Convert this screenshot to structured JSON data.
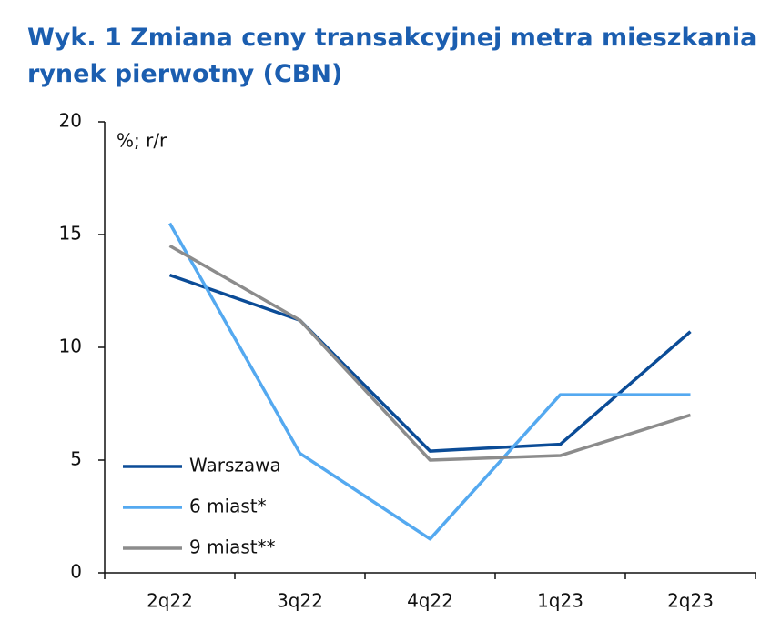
{
  "chart_data": {
    "type": "line",
    "title": [
      "Wyk. 1 Zmiana ceny transakcyjnej metra mieszkania",
      "rynek pierwotny (CBN)"
    ],
    "y_unit": "%; r/r",
    "categories": [
      "2q22",
      "3q22",
      "4q22",
      "1q23",
      "2q23"
    ],
    "series": [
      {
        "name": "Warszawa",
        "color": "#0b4c97",
        "values": [
          13.2,
          11.2,
          5.4,
          5.7,
          10.7
        ]
      },
      {
        "name": "6 miast*",
        "color": "#54a9f0",
        "values": [
          15.5,
          5.3,
          1.5,
          7.9,
          7.9
        ]
      },
      {
        "name": "9 miast**",
        "color": "#8c8c8c",
        "values": [
          14.5,
          11.2,
          5.0,
          5.2,
          7.0
        ]
      }
    ],
    "ylim": [
      0,
      20
    ],
    "yticks": [
      0,
      5,
      10,
      15,
      20
    ],
    "grid": false,
    "legend": "lower-left"
  }
}
